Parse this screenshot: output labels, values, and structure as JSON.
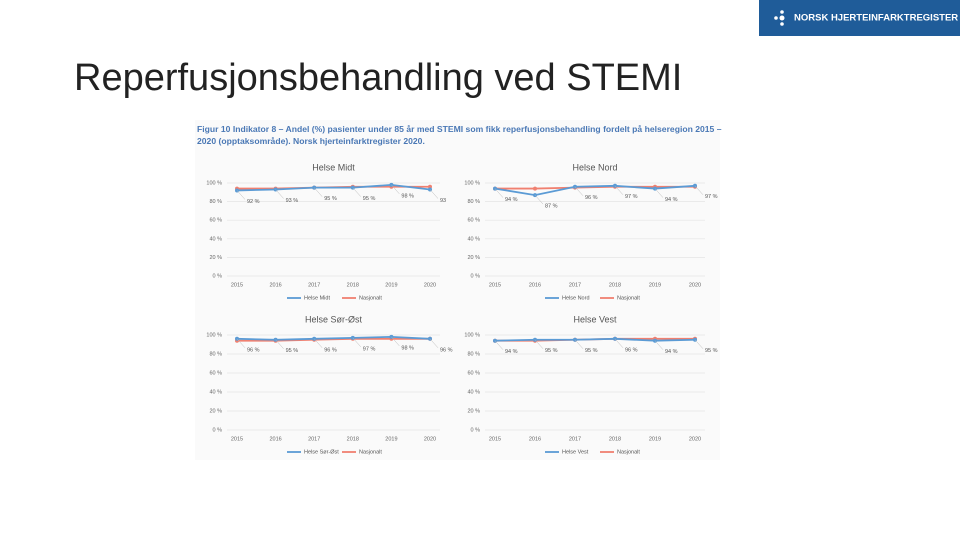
{
  "logo": "NORSK HJERTEINFARKTREGISTER",
  "slide_title": "Reperfusjonsbehandling ved STEMI",
  "figure_caption": "Figur 10 Indikator 8 – Andel (%) pasienter under 85 år med STEMI som fikk reperfusjonsbehandling fordelt på helseregion 2015 – 2020 (opptaksområde). Norsk hjerteinfarktregister 2020.",
  "chart_data": [
    {
      "type": "line",
      "title": "Helse Midt",
      "categories": [
        "2015",
        "2016",
        "2017",
        "2018",
        "2019",
        "2020"
      ],
      "ylim": [
        0,
        100
      ],
      "yticks": [
        {
          "value": 0,
          "label": "0 %"
        },
        {
          "value": 20,
          "label": "20 %"
        },
        {
          "value": 40,
          "label": "40 %"
        },
        {
          "value": 60,
          "label": "60 %"
        },
        {
          "value": 80,
          "label": "80 %"
        },
        {
          "value": 100,
          "label": "100 %"
        }
      ],
      "series": [
        {
          "name": "Helse Midt",
          "color": "#5b9bd5",
          "values": [
            92,
            93,
            95,
            95,
            98,
            93
          ],
          "value_labels": [
            "92 %",
            "93 %",
            "95 %",
            "95 %",
            "98 %",
            "93"
          ]
        },
        {
          "name": "Nasjonalt",
          "color": "#f08070",
          "values": [
            94,
            94,
            95,
            96,
            96,
            96
          ]
        }
      ]
    },
    {
      "type": "line",
      "title": "Helse Nord",
      "categories": [
        "2015",
        "2016",
        "2017",
        "2018",
        "2019",
        "2020"
      ],
      "ylim": [
        0,
        100
      ],
      "yticks": [
        {
          "value": 0,
          "label": "0 %"
        },
        {
          "value": 20,
          "label": "20 %"
        },
        {
          "value": 40,
          "label": "40 %"
        },
        {
          "value": 60,
          "label": "60 %"
        },
        {
          "value": 80,
          "label": "80 %"
        },
        {
          "value": 100,
          "label": "100 %"
        }
      ],
      "series": [
        {
          "name": "Helse Nord",
          "color": "#5b9bd5",
          "values": [
            94,
            87,
            96,
            97,
            94,
            97
          ],
          "value_labels": [
            "94 %",
            "87 %",
            "96 %",
            "97 %",
            "94 %",
            "97 %"
          ]
        },
        {
          "name": "Nasjonalt",
          "color": "#f08070",
          "values": [
            94,
            94,
            95,
            96,
            96,
            96
          ]
        }
      ]
    },
    {
      "type": "line",
      "title": "Helse Sør-Øst",
      "categories": [
        "2015",
        "2016",
        "2017",
        "2018",
        "2019",
        "2020"
      ],
      "ylim": [
        0,
        100
      ],
      "yticks": [
        {
          "value": 0,
          "label": "0 %"
        },
        {
          "value": 20,
          "label": "20 %"
        },
        {
          "value": 40,
          "label": "40 %"
        },
        {
          "value": 60,
          "label": "60 %"
        },
        {
          "value": 80,
          "label": "80 %"
        },
        {
          "value": 100,
          "label": "100 %"
        }
      ],
      "series": [
        {
          "name": "Helse Sør-Øst",
          "color": "#5b9bd5",
          "values": [
            96,
            95,
            96,
            97,
            98,
            96
          ],
          "value_labels": [
            "96 %",
            "95 %",
            "96 %",
            "97 %",
            "98 %",
            "96 %"
          ]
        },
        {
          "name": "Nasjonalt",
          "color": "#f08070",
          "values": [
            94,
            94,
            95,
            96,
            96,
            96
          ]
        }
      ]
    },
    {
      "type": "line",
      "title": "Helse Vest",
      "categories": [
        "2015",
        "2016",
        "2017",
        "2018",
        "2019",
        "2020"
      ],
      "ylim": [
        0,
        100
      ],
      "yticks": [
        {
          "value": 0,
          "label": "0 %"
        },
        {
          "value": 20,
          "label": "20 %"
        },
        {
          "value": 40,
          "label": "40 %"
        },
        {
          "value": 60,
          "label": "60 %"
        },
        {
          "value": 80,
          "label": "80 %"
        },
        {
          "value": 100,
          "label": "100 %"
        }
      ],
      "series": [
        {
          "name": "Helse Vest",
          "color": "#5b9bd5",
          "values": [
            94,
            95,
            95,
            96,
            94,
            95
          ],
          "value_labels": [
            "94 %",
            "95 %",
            "95 %",
            "96 %",
            "94 %",
            "95 %"
          ]
        },
        {
          "name": "Nasjonalt",
          "color": "#f08070",
          "values": [
            94,
            94,
            95,
            96,
            96,
            96
          ]
        }
      ]
    }
  ]
}
